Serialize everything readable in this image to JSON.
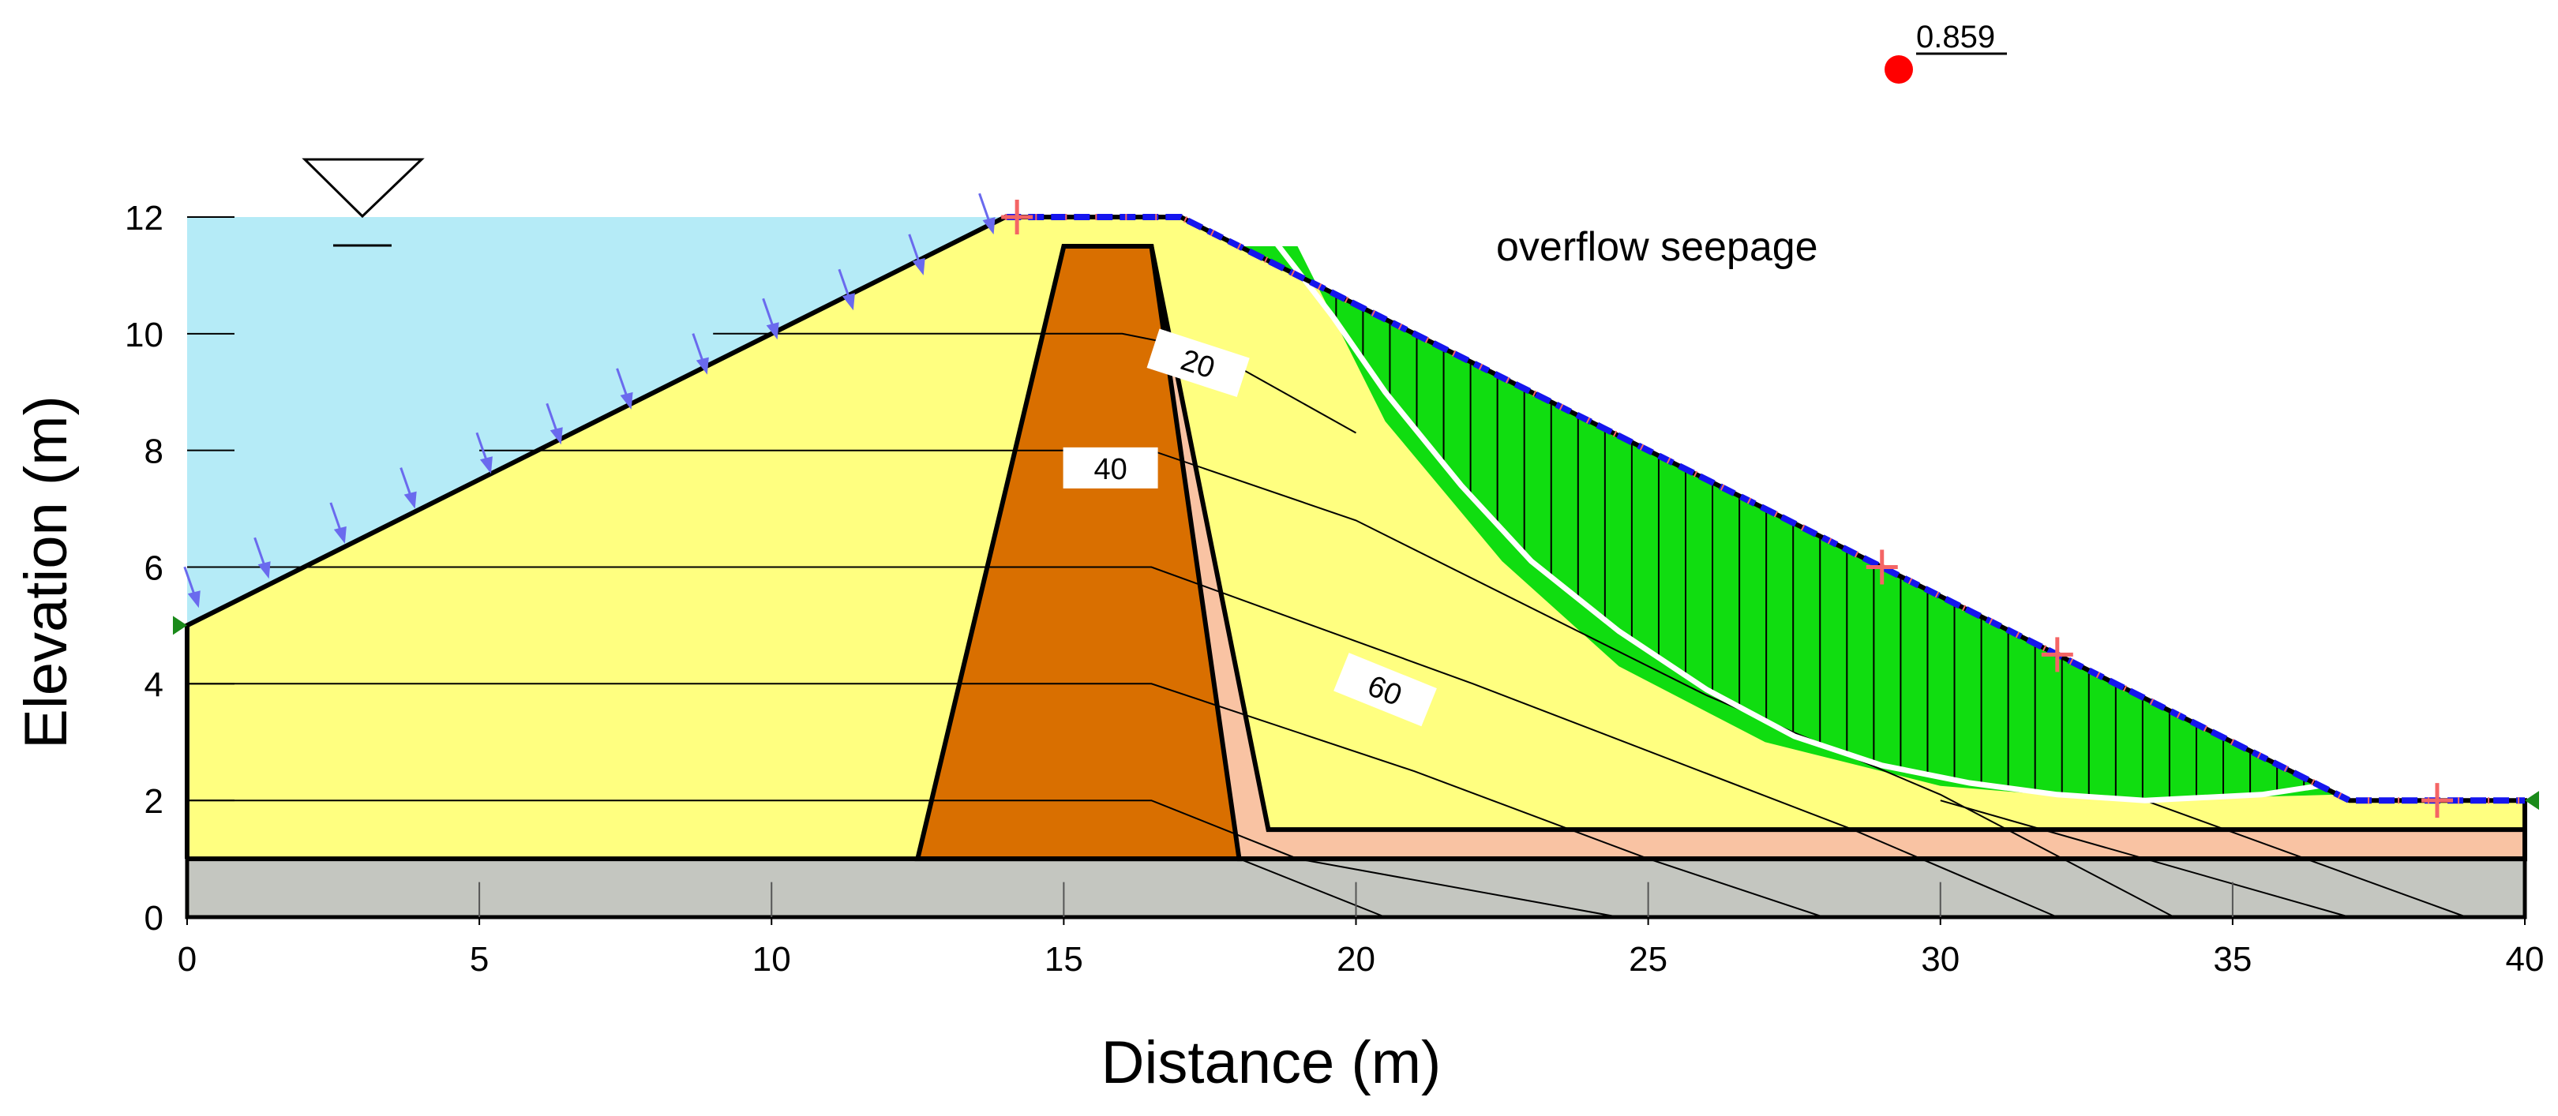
{
  "chart_data": {
    "type": "diagram",
    "title": "",
    "xlabel": "Distance (m)",
    "ylabel": "Elevation (m)",
    "xlim": [
      0,
      40
    ],
    "ylim": [
      0,
      12
    ],
    "x_ticks": [
      0,
      5,
      10,
      15,
      20,
      25,
      30,
      35,
      40
    ],
    "y_ticks": [
      0,
      2,
      4,
      6,
      8,
      10,
      12
    ],
    "annotation": "overflow seepage",
    "factor_of_safety": "0.859",
    "reservoir_level": 12,
    "contour_labels": [
      {
        "text": "20",
        "x": 17.3,
        "y": 9.5,
        "angle": 18
      },
      {
        "text": "40",
        "x": 15.8,
        "y": 7.7,
        "angle": 0
      },
      {
        "text": "60",
        "x": 20.5,
        "y": 3.9,
        "angle": 22
      }
    ],
    "regions": {
      "foundation": [
        [
          0,
          0
        ],
        [
          40,
          0
        ],
        [
          40,
          1
        ],
        [
          0,
          1
        ]
      ],
      "dam_shell": [
        [
          0,
          1
        ],
        [
          0,
          5
        ],
        [
          14,
          12
        ],
        [
          17,
          12
        ],
        [
          37,
          2
        ],
        [
          40,
          2
        ],
        [
          40,
          1
        ]
      ],
      "filter": [
        [
          16,
          11.5
        ],
        [
          16.5,
          11.5
        ],
        [
          18.5,
          1.5
        ],
        [
          40,
          1.5
        ],
        [
          40,
          1
        ],
        [
          18,
          1
        ]
      ],
      "core": [
        [
          12.5,
          1
        ],
        [
          15,
          11.5
        ],
        [
          16.5,
          11.5
        ],
        [
          18,
          1
        ]
      ],
      "water": [
        [
          0,
          5
        ],
        [
          0,
          12
        ],
        [
          14,
          12
        ]
      ],
      "slip_mass": [
        [
          18,
          11.5
        ],
        [
          20,
          10.5
        ],
        [
          25,
          8
        ],
        [
          30,
          5.5
        ],
        [
          35,
          3
        ],
        [
          36.8,
          2.1
        ],
        [
          33,
          2
        ],
        [
          30,
          2.25
        ],
        [
          27,
          3.0
        ],
        [
          24.5,
          4.3
        ],
        [
          22.5,
          6.1
        ],
        [
          20.5,
          8.5
        ],
        [
          19,
          11.5
        ]
      ]
    },
    "slip_surface": [
      [
        18.6,
        11.6
      ],
      [
        19.6,
        10.3
      ],
      [
        20.5,
        9.0
      ],
      [
        21.8,
        7.4
      ],
      [
        23,
        6.1
      ],
      [
        24.5,
        4.9
      ],
      [
        26,
        3.9
      ],
      [
        27.5,
        3.1
      ],
      [
        29,
        2.6
      ],
      [
        30.5,
        2.3
      ],
      [
        32,
        2.1
      ],
      [
        33.5,
        2.0
      ],
      [
        35.5,
        2.1
      ],
      [
        36.8,
        2.3
      ]
    ],
    "phreatic_line": [
      [
        14,
        12
      ],
      [
        17,
        12
      ],
      [
        37,
        2
      ],
      [
        40,
        2
      ]
    ],
    "marker_crosses": [
      [
        14.2,
        12
      ],
      [
        29,
        6
      ],
      [
        32,
        4.5
      ],
      [
        38.5,
        2
      ]
    ],
    "contour_lines": [
      [
        [
          9,
          10
        ],
        [
          16,
          10
        ],
        [
          17.5,
          9.7
        ],
        [
          20,
          8.3
        ]
      ],
      [
        [
          5,
          8
        ],
        [
          16.5,
          8
        ],
        [
          20,
          6.8
        ],
        [
          26,
          3.8
        ],
        [
          30,
          2.1
        ],
        [
          34,
          0
        ]
      ],
      [
        [
          0,
          6
        ],
        [
          16.5,
          6
        ],
        [
          22,
          4
        ],
        [
          28.5,
          1.5
        ],
        [
          32,
          0
        ]
      ],
      [
        [
          0,
          4
        ],
        [
          16.5,
          4
        ],
        [
          21,
          2.5
        ],
        [
          25,
          1
        ],
        [
          28,
          0
        ]
      ],
      [
        [
          0,
          2
        ],
        [
          16.5,
          2
        ],
        [
          19,
          1
        ],
        [
          24.5,
          0
        ]
      ],
      [
        [
          18,
          1
        ],
        [
          20.5,
          0
        ]
      ],
      [
        [
          30,
          2
        ],
        [
          37,
          0
        ]
      ],
      [
        [
          33.5,
          2
        ],
        [
          39,
          0
        ]
      ]
    ],
    "seepage_arrows": [
      [
        0.2,
        5.3
      ],
      [
        1.4,
        5.8
      ],
      [
        2.7,
        6.4
      ],
      [
        3.9,
        7.0
      ],
      [
        5.2,
        7.6
      ],
      [
        6.4,
        8.1
      ],
      [
        7.6,
        8.7
      ],
      [
        8.9,
        9.3
      ],
      [
        10.1,
        9.9
      ],
      [
        11.4,
        10.4
      ],
      [
        12.6,
        11.0
      ],
      [
        13.8,
        11.7
      ]
    ]
  }
}
